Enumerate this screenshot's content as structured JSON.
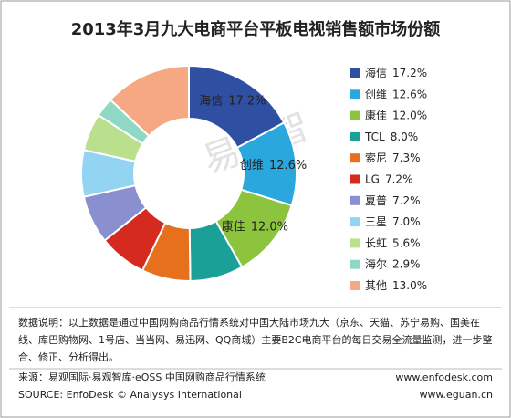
{
  "chart_data": {
    "type": "donut",
    "title": "2013年3月九大电商平台平板电视销售额市场份额",
    "categories": [
      "海信",
      "创维",
      "康佳",
      "TCL",
      "索尼",
      "LG",
      "夏普",
      "三星",
      "长虹",
      "海尔",
      "其他"
    ],
    "values": [
      17.2,
      12.6,
      12.0,
      8.0,
      7.3,
      7.2,
      7.2,
      7.0,
      5.6,
      2.9,
      13.0
    ],
    "value_labels": [
      "17.2%",
      "12.6%",
      "12.0%",
      "8.0%",
      "7.3%",
      "7.2%",
      "7.2%",
      "7.0%",
      "5.6%",
      "2.9%",
      "13.0%"
    ],
    "colors": [
      "#2f4fa3",
      "#2aa7dc",
      "#8cc43e",
      "#1aa096",
      "#e6701c",
      "#d52a1f",
      "#8a8fd0",
      "#93d4f3",
      "#bbe08d",
      "#90d8c6",
      "#f6a882"
    ],
    "inside_label_count": 3,
    "watermark": "易观智"
  },
  "notes": {
    "lines": [
      "数据说明：以上数据是通过中国网购商品行情系统对中国大陆市场九大（京东、天猫、苏宁易购、国美在",
      "线、库巴购物网、1号店、当当网、易迅网、QQ商城）主要B2C电商平台的每日交易全流量监测，进一步整",
      "合、修正、分析得出。"
    ]
  },
  "source": {
    "cn": "来源：易观国际·易观智库·eOSS 中国网购商品行情系统",
    "en": "SOURCE: EnfoDesk © Analysys International",
    "url1": "www.enfodesk.com",
    "url2": "www.eguan.cn"
  }
}
